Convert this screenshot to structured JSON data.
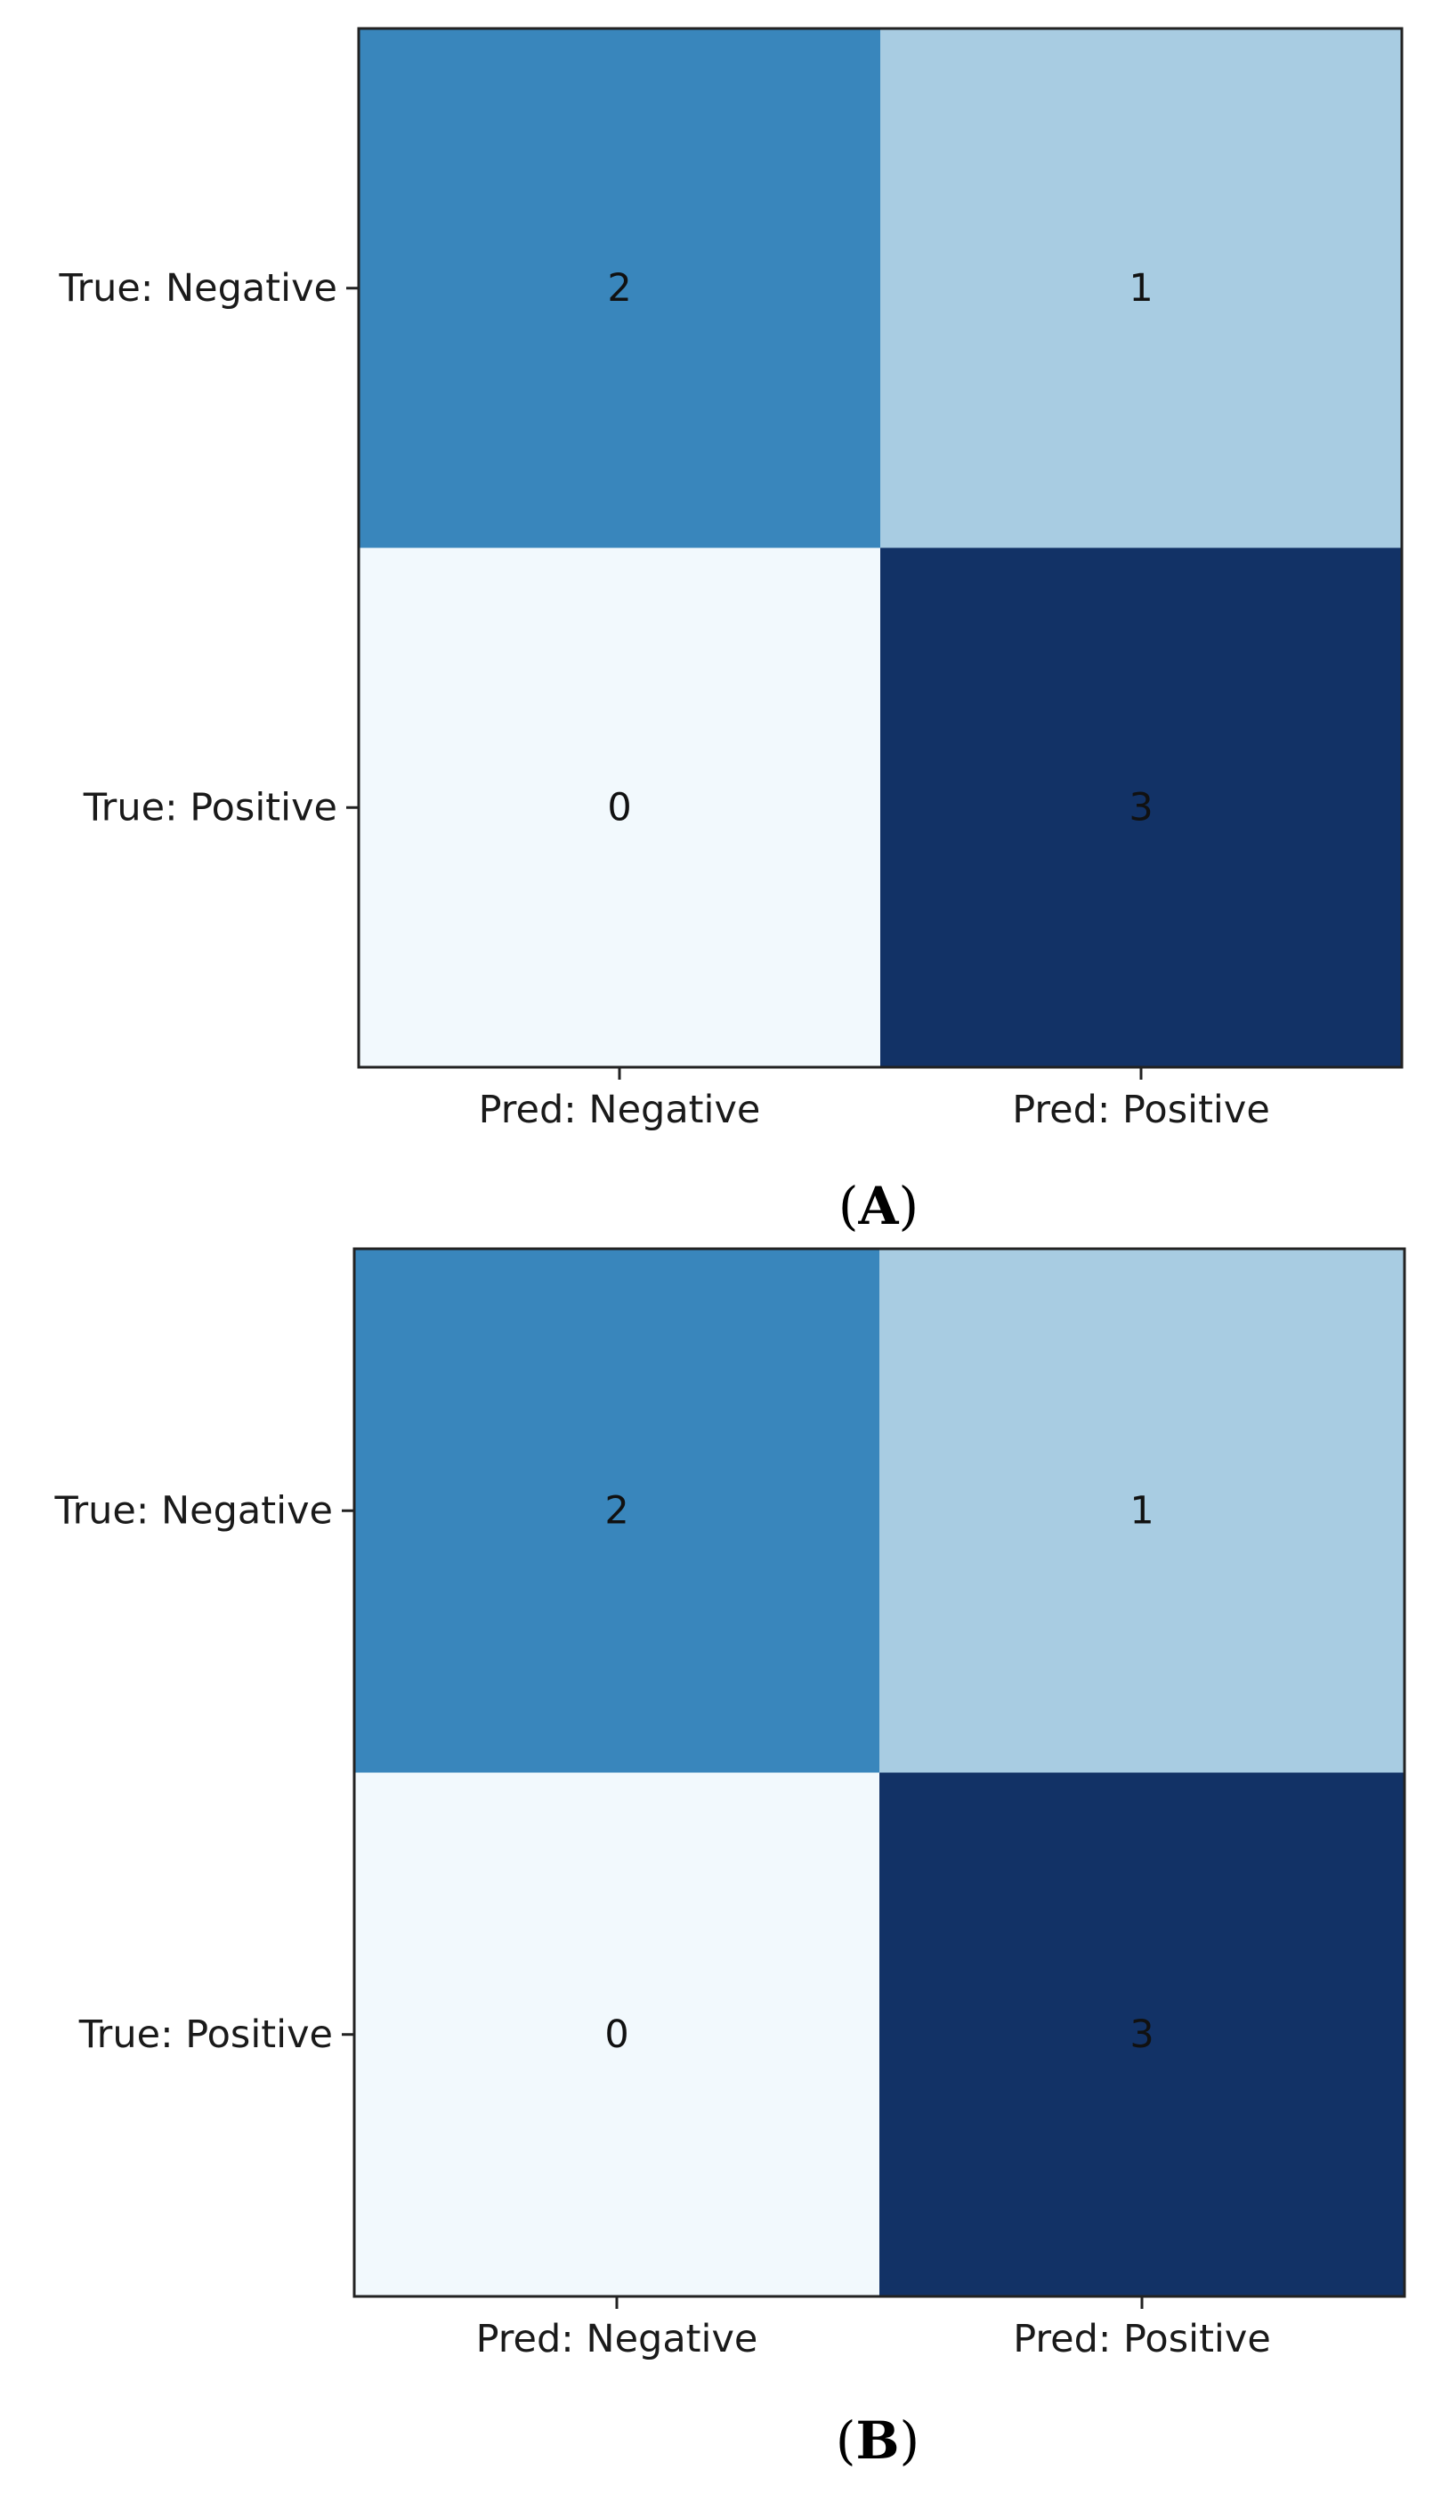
{
  "chart_data": [
    {
      "type": "heatmap",
      "panel_label": "A",
      "rows": [
        "True: Negative",
        "True: Positive"
      ],
      "columns": [
        "Pred: Negative",
        "Pred: Positive"
      ],
      "values": [
        [
          2,
          1
        ],
        [
          0,
          3
        ]
      ],
      "cell_labels": [
        [
          "2",
          "1"
        ],
        [
          "0",
          "3"
        ]
      ],
      "colormap": "Blues",
      "cell_colors": [
        [
          "#3986bc",
          "#a8cce2"
        ],
        [
          "#f2f9fd",
          "#123266"
        ]
      ],
      "grid": false,
      "legend": "none"
    },
    {
      "type": "heatmap",
      "panel_label": "B",
      "rows": [
        "True: Negative",
        "True: Positive"
      ],
      "columns": [
        "Pred: Negative",
        "Pred: Positive"
      ],
      "values": [
        [
          2,
          1
        ],
        [
          0,
          3
        ]
      ],
      "cell_labels": [
        [
          "2",
          "1"
        ],
        [
          "0",
          "3"
        ]
      ],
      "colormap": "Blues",
      "cell_colors": [
        [
          "#3986bc",
          "#a8cce2"
        ],
        [
          "#f2f9fd",
          "#123266"
        ]
      ],
      "grid": false,
      "legend": "none"
    }
  ]
}
